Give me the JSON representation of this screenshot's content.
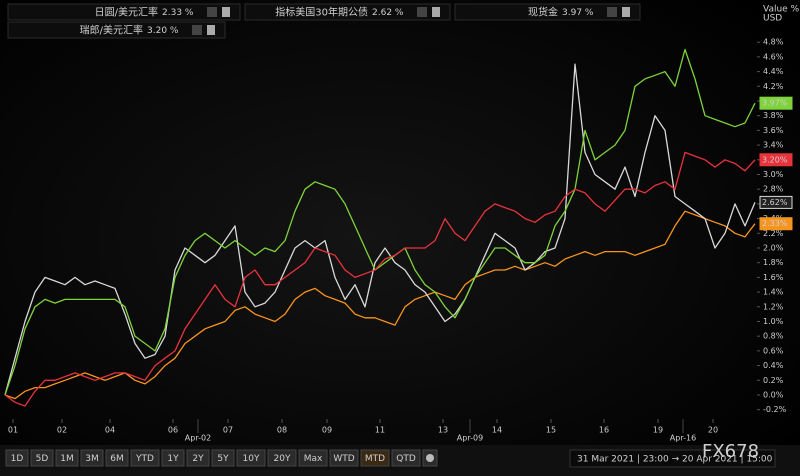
{
  "chart_data": {
    "type": "line",
    "axis_title": "Value %",
    "axis_unit": "USD",
    "x": [
      0,
      1,
      2,
      3,
      4,
      5,
      6,
      7,
      8,
      9,
      10,
      11,
      12,
      13,
      14,
      15,
      16,
      17,
      18,
      19,
      20,
      21,
      22,
      23,
      24,
      25,
      26,
      27,
      28,
      29,
      30,
      31,
      32,
      33,
      34,
      35,
      36,
      37,
      38,
      39,
      40,
      41,
      42,
      43,
      44,
      45,
      46,
      47,
      48,
      49,
      50,
      51,
      52,
      53,
      54,
      55,
      56,
      57,
      58,
      59,
      60,
      61,
      62,
      63,
      64,
      65,
      66,
      67,
      68,
      69,
      70,
      71,
      72,
      73,
      74,
      75
    ],
    "xlim": [
      0,
      75
    ],
    "xticks": [
      {
        "value": 0.8,
        "label": "01"
      },
      {
        "value": 5.7,
        "label": "02"
      },
      {
        "value": 10.5,
        "label": "04"
      },
      {
        "value": 16.8,
        "label": "06"
      },
      {
        "value": 22.3,
        "label": "07"
      },
      {
        "value": 27.7,
        "label": "08"
      },
      {
        "value": 32.2,
        "label": "09"
      },
      {
        "value": 37.5,
        "label": "11"
      },
      {
        "value": 43.8,
        "label": "13"
      },
      {
        "value": 49.2,
        "label": "14"
      },
      {
        "value": 54.6,
        "label": "15"
      },
      {
        "value": 59.9,
        "label": "16"
      },
      {
        "value": 65.3,
        "label": "19"
      },
      {
        "value": 70.8,
        "label": "20"
      }
    ],
    "date_ticks": [
      {
        "value": 19.3,
        "label": "Apr-02"
      },
      {
        "value": 46.5,
        "label": "Apr-09"
      },
      {
        "value": 67.8,
        "label": "Apr-16"
      }
    ],
    "ylim": [
      -0.3,
      5.0
    ],
    "yticks": [
      {
        "value": -0.2,
        "label": "-0.2%"
      },
      {
        "value": 0.0,
        "label": "0.0%"
      },
      {
        "value": 0.2,
        "label": "0.2%"
      },
      {
        "value": 0.4,
        "label": "0.4%"
      },
      {
        "value": 0.6,
        "label": "0.6%"
      },
      {
        "value": 0.8,
        "label": "0.8%"
      },
      {
        "value": 1.0,
        "label": "1.0%"
      },
      {
        "value": 1.2,
        "label": "1.2%"
      },
      {
        "value": 1.4,
        "label": "1.4%"
      },
      {
        "value": 1.6,
        "label": "1.6%"
      },
      {
        "value": 1.8,
        "label": "1.8%"
      },
      {
        "value": 2.0,
        "label": "2.0%"
      },
      {
        "value": 2.2,
        "label": "2.2%"
      },
      {
        "value": 2.4,
        "label": "2.4%"
      },
      {
        "value": 2.6,
        "label": "2.6%"
      },
      {
        "value": 2.8,
        "label": "2.8%"
      },
      {
        "value": 3.0,
        "label": "3.0%"
      },
      {
        "value": 3.2,
        "label": "3.2%"
      },
      {
        "value": 3.4,
        "label": "3.4%"
      },
      {
        "value": 3.6,
        "label": "3.6%"
      },
      {
        "value": 3.8,
        "label": "3.8%"
      },
      {
        "value": 4.0,
        "label": "4.0%"
      },
      {
        "value": 4.2,
        "label": "4.2%"
      },
      {
        "value": 4.4,
        "label": "4.4%"
      },
      {
        "value": 4.6,
        "label": "4.6%"
      },
      {
        "value": 4.8,
        "label": "4.8%"
      }
    ],
    "grid": false,
    "series": [
      {
        "name": "日圆/美元汇率",
        "color": "#f7941d",
        "legend_value": "2.33 %",
        "end_label": "2.33%",
        "values": [
          0.0,
          -0.05,
          0.05,
          0.1,
          0.1,
          0.15,
          0.2,
          0.25,
          0.3,
          0.25,
          0.2,
          0.25,
          0.3,
          0.2,
          0.15,
          0.25,
          0.4,
          0.5,
          0.7,
          0.8,
          0.9,
          0.95,
          1.0,
          1.15,
          1.2,
          1.1,
          1.05,
          1.0,
          1.1,
          1.3,
          1.4,
          1.45,
          1.35,
          1.3,
          1.25,
          1.1,
          1.05,
          1.05,
          1.0,
          0.95,
          1.2,
          1.3,
          1.35,
          1.4,
          1.35,
          1.3,
          1.5,
          1.6,
          1.65,
          1.7,
          1.7,
          1.75,
          1.7,
          1.75,
          1.8,
          1.75,
          1.85,
          1.9,
          1.95,
          1.9,
          1.95,
          1.95,
          1.95,
          1.9,
          1.95,
          2.0,
          2.05,
          2.3,
          2.5,
          2.45,
          2.4,
          2.35,
          2.3,
          2.2,
          2.15,
          2.33
        ]
      },
      {
        "name": "指标美国30年期公债",
        "color": "#d8d8d8",
        "legend_value": "2.62 %",
        "end_label": "2.62%",
        "values": [
          0.0,
          0.5,
          1.0,
          1.4,
          1.6,
          1.55,
          1.5,
          1.6,
          1.5,
          1.55,
          1.5,
          1.45,
          1.1,
          0.7,
          0.5,
          0.55,
          0.8,
          1.7,
          2.0,
          1.9,
          1.8,
          1.9,
          2.1,
          2.3,
          1.4,
          1.2,
          1.25,
          1.4,
          1.7,
          2.0,
          2.1,
          2.0,
          2.1,
          1.6,
          1.3,
          1.5,
          1.2,
          1.8,
          2.0,
          1.8,
          1.7,
          1.5,
          1.4,
          1.2,
          1.0,
          1.1,
          1.3,
          1.6,
          1.9,
          2.2,
          2.1,
          2.0,
          1.7,
          1.8,
          1.95,
          2.0,
          2.4,
          4.5,
          3.3,
          3.0,
          2.9,
          2.8,
          3.1,
          2.7,
          3.3,
          3.8,
          3.6,
          2.7,
          2.6,
          2.5,
          2.4,
          2.0,
          2.2,
          2.6,
          2.3,
          2.62
        ]
      },
      {
        "name": "现货金",
        "color": "#7ed23a",
        "legend_value": "3.97 %",
        "end_label": "3.97%",
        "values": [
          0.0,
          0.4,
          0.9,
          1.2,
          1.3,
          1.25,
          1.3,
          1.3,
          1.3,
          1.3,
          1.3,
          1.3,
          1.2,
          0.8,
          0.7,
          0.6,
          0.9,
          1.6,
          1.9,
          2.1,
          2.2,
          2.1,
          2.0,
          2.1,
          2.0,
          1.9,
          2.0,
          1.95,
          2.1,
          2.5,
          2.8,
          2.9,
          2.85,
          2.8,
          2.6,
          2.3,
          2.0,
          1.7,
          1.8,
          1.9,
          2.0,
          1.7,
          1.5,
          1.4,
          1.2,
          1.05,
          1.3,
          1.6,
          1.8,
          2.0,
          2.0,
          1.9,
          1.8,
          1.8,
          1.9,
          2.3,
          2.5,
          2.8,
          3.6,
          3.2,
          3.3,
          3.4,
          3.6,
          4.2,
          4.3,
          4.35,
          4.4,
          4.2,
          4.7,
          4.3,
          3.8,
          3.75,
          3.7,
          3.65,
          3.7,
          3.97
        ]
      },
      {
        "name": "瑞郎/美元汇率",
        "color": "#e8333c",
        "legend_value": "3.20 %",
        "end_label": "3.20%",
        "values": [
          0.0,
          -0.1,
          -0.15,
          0.05,
          0.2,
          0.2,
          0.25,
          0.3,
          0.25,
          0.2,
          0.25,
          0.3,
          0.3,
          0.25,
          0.2,
          0.4,
          0.5,
          0.6,
          0.9,
          1.1,
          1.3,
          1.5,
          1.3,
          1.2,
          1.6,
          1.7,
          1.5,
          1.5,
          1.6,
          1.7,
          1.8,
          2.0,
          1.95,
          1.9,
          1.7,
          1.6,
          1.65,
          1.7,
          1.85,
          1.9,
          2.0,
          2.0,
          2.0,
          2.1,
          2.4,
          2.2,
          2.1,
          2.3,
          2.5,
          2.6,
          2.55,
          2.5,
          2.4,
          2.35,
          2.45,
          2.5,
          2.7,
          2.8,
          2.75,
          2.6,
          2.5,
          2.65,
          2.8,
          2.8,
          2.75,
          2.85,
          2.9,
          2.8,
          3.3,
          3.25,
          3.2,
          3.1,
          3.2,
          3.15,
          3.05,
          3.2
        ]
      }
    ]
  },
  "toolbar": {
    "buttons": [
      {
        "label": "1D",
        "enabled": true
      },
      {
        "label": "5D",
        "enabled": true
      },
      {
        "label": "1M",
        "enabled": true
      },
      {
        "label": "3M",
        "enabled": true
      },
      {
        "label": "6M",
        "enabled": true
      },
      {
        "label": "YTD",
        "enabled": true
      },
      {
        "label": "1Y",
        "enabled": true
      },
      {
        "label": "2Y",
        "enabled": false
      },
      {
        "label": "5Y",
        "enabled": false
      },
      {
        "label": "10Y",
        "enabled": false
      },
      {
        "label": "20Y",
        "enabled": false
      },
      {
        "label": "Max",
        "enabled": true
      },
      {
        "label": "WTD",
        "enabled": true
      },
      {
        "label": "MTD",
        "enabled": true,
        "active": true
      },
      {
        "label": "QTD",
        "enabled": true
      }
    ],
    "date_range": "31 Mar 2021 | 23:00 → 20 Apr 2021 | 15:00"
  },
  "watermark": "FX678"
}
